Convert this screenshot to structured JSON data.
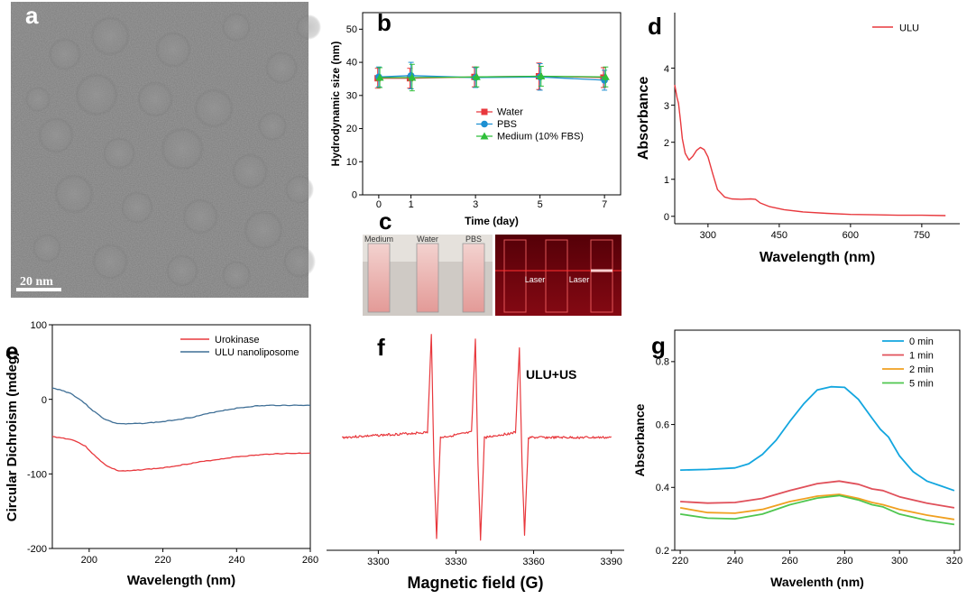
{
  "figure": {
    "panels": [
      "a",
      "b",
      "c",
      "d",
      "e",
      "f",
      "g"
    ],
    "scalebar_label": "20 nm"
  },
  "colors": {
    "red": "#e8383d",
    "blue": "#1e90d2",
    "green": "#2fbf3a",
    "orange": "#f5a623",
    "steel": "#3f6f96",
    "uv_blue": "#13a6df",
    "g_red": "#e0505a",
    "g_orange": "#f0a020",
    "g_green": "#4fc64f"
  },
  "photo_c": {
    "left_labels": [
      "Medium",
      "Water",
      "PBS"
    ],
    "right_labels": [
      "Laser",
      "Laser"
    ]
  },
  "chart_data": [
    {
      "id": "b",
      "type": "line",
      "title": "",
      "xlabel": "Time (day)",
      "ylabel": "Hydrodynamic size (nm)",
      "x": [
        0,
        1,
        3,
        5,
        7
      ],
      "xticks": [
        0,
        1,
        3,
        5,
        7
      ],
      "yticks": [
        0,
        10,
        20,
        30,
        40,
        50
      ],
      "xlim": [
        -0.5,
        7.5
      ],
      "ylim": [
        0,
        55
      ],
      "series": [
        {
          "name": "Water",
          "marker": "square",
          "color": "#e8383d",
          "values": [
            35.2,
            35.2,
            35.6,
            35.8,
            35.4
          ],
          "err": [
            3,
            3,
            3,
            4,
            3
          ]
        },
        {
          "name": "PBS",
          "marker": "circle",
          "color": "#1e90d2",
          "values": [
            35.6,
            36.0,
            35.4,
            35.6,
            34.6
          ],
          "err": [
            3,
            4,
            3,
            4,
            3
          ]
        },
        {
          "name": "Medium (10% FBS)",
          "marker": "triangle",
          "color": "#2fbf3a",
          "values": [
            35.4,
            35.4,
            35.6,
            35.8,
            35.6
          ],
          "err": [
            3,
            4,
            3,
            3,
            3
          ]
        }
      ]
    },
    {
      "id": "d",
      "type": "line",
      "xlabel": "Wavelength (nm)",
      "ylabel": "Absorbance",
      "xticks": [
        300,
        450,
        600,
        750
      ],
      "yticks": [
        0,
        1,
        2,
        3,
        4
      ],
      "xlim": [
        230,
        830
      ],
      "ylim": [
        -0.2,
        5.5
      ],
      "series": [
        {
          "name": "ULU",
          "color": "#e8383d",
          "x": [
            230,
            235,
            238,
            242,
            246,
            252,
            260,
            268,
            276,
            284,
            292,
            300,
            310,
            320,
            335,
            350,
            370,
            390,
            400,
            410,
            430,
            460,
            500,
            550,
            600,
            650,
            700,
            750,
            800
          ],
          "values": [
            3.55,
            3.2,
            3.05,
            2.6,
            2.1,
            1.7,
            1.52,
            1.62,
            1.78,
            1.86,
            1.8,
            1.6,
            1.15,
            0.72,
            0.52,
            0.47,
            0.46,
            0.47,
            0.46,
            0.36,
            0.26,
            0.18,
            0.12,
            0.08,
            0.05,
            0.04,
            0.03,
            0.03,
            0.02
          ]
        }
      ]
    },
    {
      "id": "e",
      "type": "line",
      "xlabel": "Wavelength (nm)",
      "ylabel": "Circular Dichroism (mdeg)",
      "xticks": [
        200,
        220,
        240,
        260
      ],
      "yticks": [
        100,
        0,
        -100,
        -200
      ],
      "xlim": [
        190,
        260
      ],
      "ylim": [
        -200,
        100
      ],
      "series": [
        {
          "name": "Urokinase",
          "color": "#e8383d",
          "x": [
            190,
            193,
            196,
            199,
            202,
            205,
            208,
            211,
            215,
            220,
            230,
            240,
            250,
            260
          ],
          "values": [
            -50,
            -52,
            -55,
            -63,
            -78,
            -90,
            -96,
            -96,
            -94,
            -92,
            -84,
            -77,
            -73,
            -72
          ]
        },
        {
          "name": "ULU nanoliposome",
          "color": "#3f6f96",
          "x": [
            190,
            192,
            195,
            198,
            201,
            204,
            207,
            210,
            215,
            220,
            228,
            235,
            240,
            245,
            250,
            255,
            260
          ],
          "values": [
            15,
            13,
            8,
            -2,
            -15,
            -26,
            -32,
            -33,
            -32,
            -30,
            -24,
            -16,
            -12,
            -9,
            -8,
            -8,
            -8
          ]
        }
      ]
    },
    {
      "id": "f",
      "type": "line",
      "xlabel": "Magnetic field (G)",
      "ylabel": "",
      "annotation": "ULU+US",
      "xticks": [
        3300,
        3330,
        3360,
        3390
      ],
      "xlim": [
        3280,
        3395
      ],
      "ylim": [
        -1.1,
        1.1
      ],
      "series": [
        {
          "name": "ULU+US",
          "color": "#e8383d",
          "x": [
            3286,
            3319,
            3320.5,
            3321.5,
            3322.5,
            3324,
            3336,
            3337.5,
            3338.5,
            3339.5,
            3341,
            3353,
            3354.5,
            3355.5,
            3356.5,
            3358,
            3390
          ],
          "values": [
            0,
            0.05,
            1.0,
            -0.25,
            -0.98,
            0.0,
            0.05,
            0.95,
            -0.25,
            -1.0,
            0.0,
            0.05,
            0.88,
            -0.25,
            -0.95,
            0.0,
            0
          ]
        }
      ]
    },
    {
      "id": "g",
      "type": "line",
      "xlabel": "Wavelenth (nm)",
      "ylabel": "Absorbance",
      "xticks": [
        220,
        240,
        260,
        280,
        300,
        320
      ],
      "yticks": [
        0.2,
        0.4,
        0.6,
        0.8
      ],
      "xlim": [
        218,
        322
      ],
      "ylim": [
        0.2,
        0.9
      ],
      "series": [
        {
          "name": "0 min",
          "color": "#13a6df",
          "x": [
            220,
            230,
            240,
            245,
            250,
            255,
            260,
            265,
            270,
            275,
            280,
            285,
            290,
            293,
            296,
            300,
            305,
            310,
            315,
            320
          ],
          "values": [
            0.455,
            0.457,
            0.462,
            0.475,
            0.505,
            0.55,
            0.61,
            0.665,
            0.71,
            0.72,
            0.718,
            0.68,
            0.62,
            0.585,
            0.56,
            0.5,
            0.45,
            0.42,
            0.405,
            0.39
          ]
        },
        {
          "name": "1 min",
          "color": "#e0505a",
          "x": [
            220,
            230,
            240,
            250,
            260,
            270,
            278,
            285,
            290,
            294,
            300,
            310,
            320
          ],
          "values": [
            0.355,
            0.35,
            0.352,
            0.365,
            0.39,
            0.412,
            0.42,
            0.41,
            0.395,
            0.39,
            0.37,
            0.35,
            0.335
          ]
        },
        {
          "name": "2 min",
          "color": "#f0a020",
          "x": [
            220,
            230,
            240,
            250,
            260,
            270,
            278,
            285,
            290,
            294,
            300,
            310,
            320
          ],
          "values": [
            0.335,
            0.32,
            0.318,
            0.33,
            0.355,
            0.372,
            0.378,
            0.365,
            0.352,
            0.345,
            0.33,
            0.312,
            0.298
          ]
        },
        {
          "name": "5 min",
          "color": "#4fc64f",
          "x": [
            220,
            230,
            240,
            250,
            260,
            270,
            278,
            285,
            290,
            294,
            300,
            310,
            320
          ],
          "values": [
            0.315,
            0.302,
            0.3,
            0.315,
            0.345,
            0.366,
            0.374,
            0.36,
            0.345,
            0.338,
            0.315,
            0.295,
            0.282
          ]
        }
      ]
    }
  ]
}
